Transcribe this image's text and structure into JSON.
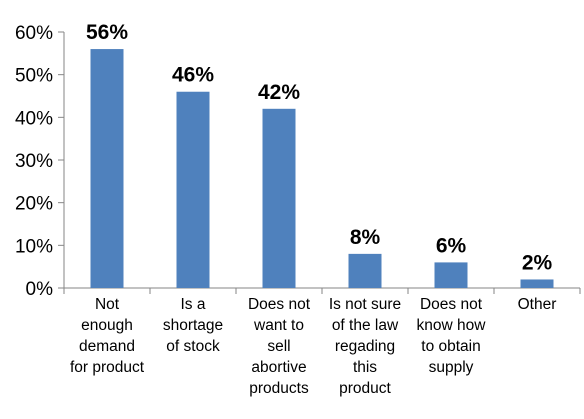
{
  "chart_data": {
    "type": "bar",
    "categories": [
      [
        "Not",
        "enough",
        "demand",
        "for product"
      ],
      [
        "Is a",
        "shortage",
        "of stock"
      ],
      [
        "Does not",
        "want to",
        "sell",
        "abortive",
        "products"
      ],
      [
        "Is not sure",
        "of the law",
        "regading",
        "this",
        "product"
      ],
      [
        "Does not",
        "know how",
        "to obtain",
        "supply"
      ],
      [
        "Other"
      ]
    ],
    "values": [
      56,
      46,
      42,
      8,
      6,
      2
    ],
    "data_labels": [
      "56%",
      "46%",
      "42%",
      "8%",
      "6%",
      "2%"
    ],
    "yticks": [
      0,
      10,
      20,
      30,
      40,
      50,
      60
    ],
    "ytick_labels": [
      "0%",
      "10%",
      "20%",
      "30%",
      "40%",
      "50%",
      "60%"
    ],
    "ylim": [
      0,
      60
    ],
    "grid": false,
    "legend": "none",
    "bar_color": "#4f81bd",
    "title_color": "#1f8fd6"
  }
}
